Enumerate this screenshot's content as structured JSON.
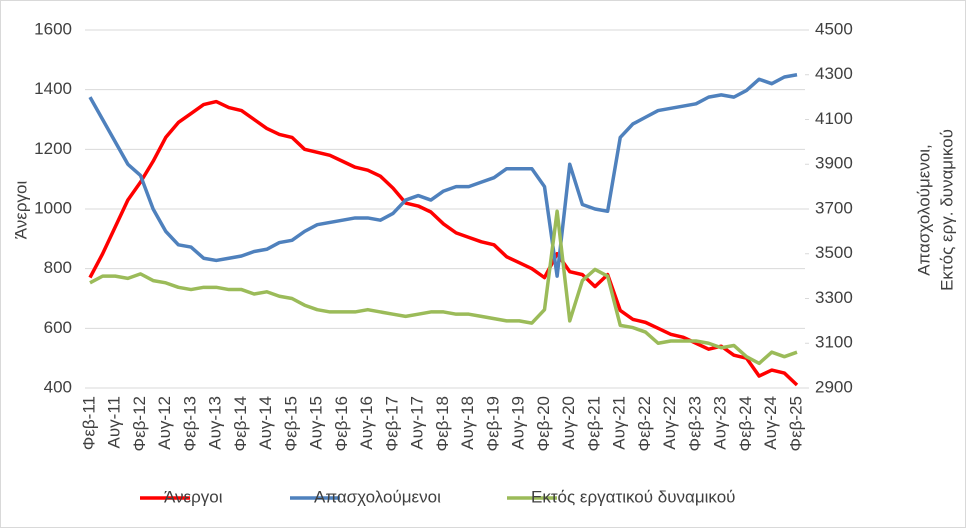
{
  "chart_data": {
    "type": "line",
    "y_label": "Άνεργοι",
    "y2_label": [
      "Απασχολούμενοι,",
      "Εκτός εργ. δυναμικού"
    ],
    "categories": [
      "Φεβ-11",
      null,
      "Αυγ-11",
      null,
      "Φεβ-12",
      null,
      "Αυγ-12",
      null,
      "Φεβ-13",
      null,
      "Αυγ-13",
      null,
      "Φεβ-14",
      null,
      "Αυγ-14",
      null,
      "Φεβ-15",
      null,
      "Αυγ-15",
      null,
      "Φεβ-16",
      null,
      "Αυγ-16",
      null,
      "Φεβ-17",
      null,
      "Αυγ-17",
      null,
      "Φεβ-18",
      null,
      "Αυγ-18",
      null,
      "Φεβ-19",
      null,
      "Αυγ-19",
      null,
      "Φεβ-20",
      null,
      "Αυγ-20",
      null,
      "Φεβ-21",
      null,
      "Αυγ-21",
      null,
      "Φεβ-22",
      null,
      "Αυγ-22",
      null,
      "Φεβ-23",
      null,
      "Αυγ-23",
      null,
      "Φεβ-24",
      null,
      "Αυγ-24",
      null,
      "Φεβ-25"
    ],
    "series": [
      {
        "name": "Άνεργοι",
        "color": "#ff0000",
        "axis": "y",
        "values": [
          770,
          850,
          940,
          1030,
          1090,
          1160,
          1240,
          1290,
          1320,
          1350,
          1360,
          1340,
          1330,
          1300,
          1270,
          1250,
          1240,
          1200,
          1190,
          1180,
          1160,
          1140,
          1130,
          1110,
          1070,
          1020,
          1010,
          990,
          950,
          920,
          905,
          890,
          880,
          840,
          820,
          800,
          770,
          850,
          790,
          780,
          740,
          780,
          660,
          630,
          620,
          600,
          580,
          570,
          550,
          530,
          540,
          510,
          500,
          440,
          460,
          450,
          410
        ]
      },
      {
        "name": "Απασχολούμενοι",
        "color": "#4f81bd",
        "axis": "y2",
        "values": [
          4200,
          4100,
          4000,
          3900,
          3850,
          3700,
          3600,
          3540,
          3530,
          3480,
          3470,
          3480,
          3490,
          3510,
          3520,
          3550,
          3560,
          3600,
          3630,
          3640,
          3650,
          3660,
          3660,
          3650,
          3680,
          3740,
          3760,
          3740,
          3780,
          3800,
          3800,
          3820,
          3840,
          3880,
          3880,
          3880,
          3800,
          3400,
          3900,
          3720,
          3700,
          3690,
          4020,
          4080,
          4110,
          4140,
          4150,
          4160,
          4170,
          4200,
          4210,
          4200,
          4230,
          4280,
          4260,
          4290,
          4300
        ]
      },
      {
        "name": "Εκτός εργατικού δυναμικού",
        "color": "#9bbb59",
        "axis": "y2",
        "values": [
          3370,
          3400,
          3400,
          3390,
          3410,
          3380,
          3370,
          3350,
          3340,
          3350,
          3350,
          3340,
          3340,
          3320,
          3330,
          3310,
          3300,
          3270,
          3250,
          3240,
          3240,
          3240,
          3250,
          3240,
          3230,
          3220,
          3230,
          3240,
          3240,
          3230,
          3230,
          3220,
          3210,
          3200,
          3200,
          3190,
          3250,
          3690,
          3200,
          3380,
          3430,
          3400,
          3180,
          3170,
          3150,
          3100,
          3110,
          3110,
          3110,
          3100,
          3080,
          3090,
          3040,
          3010,
          3060,
          3040,
          3060
        ]
      }
    ],
    "ylim": [
      400,
      1600
    ],
    "yticks": [
      400,
      600,
      800,
      1000,
      1200,
      1400,
      1600
    ],
    "y2lim": [
      2900,
      4500
    ],
    "y2ticks": [
      2900,
      3100,
      3300,
      3500,
      3700,
      3900,
      4100,
      4300,
      4500
    ],
    "grid": true,
    "legend": "bottom"
  }
}
